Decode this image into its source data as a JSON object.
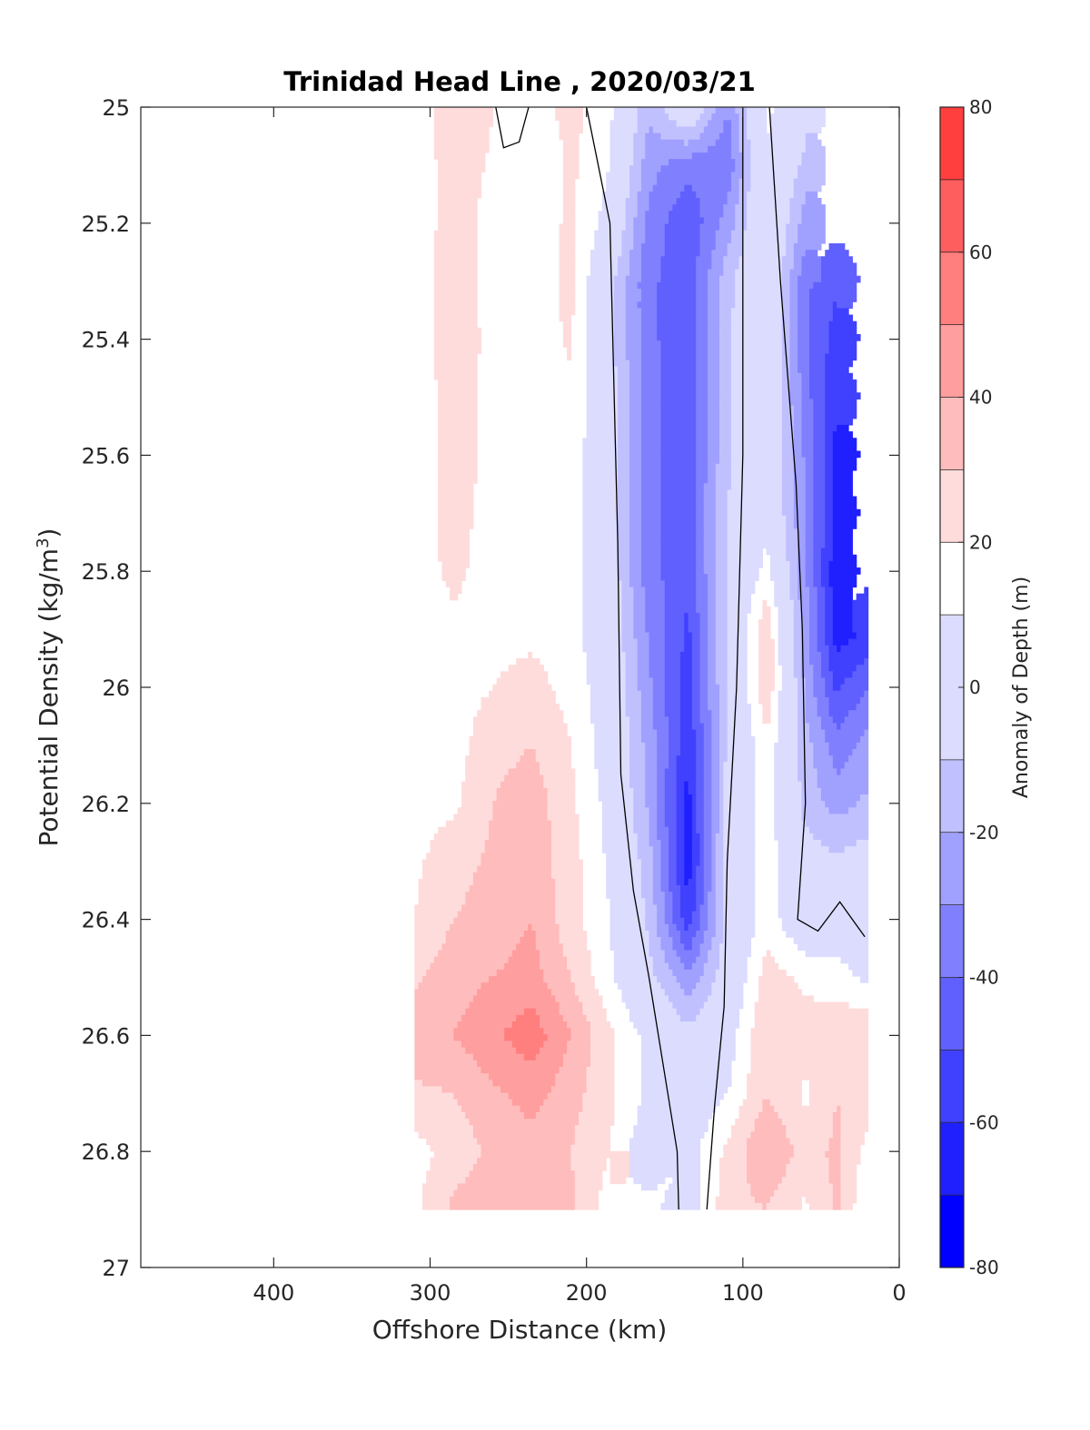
{
  "chart_data": {
    "type": "contour",
    "title": "Trinidad Head Line , 2020/03/21",
    "xlabel": "Offshore Distance (km)",
    "ylabel_main": "Potential Density (kg/m",
    "ylabel_sup": "3",
    "ylabel_end": ")",
    "xlim": [
      485,
      0
    ],
    "ylim": [
      25,
      27
    ],
    "x_reversed": true,
    "y_reversed": true,
    "x_ticks": [
      400,
      300,
      200,
      100,
      0
    ],
    "y_ticks": [
      "25",
      "25.2",
      "25.4",
      "25.6",
      "25.8",
      "26",
      "26.2",
      "26.4",
      "26.6",
      "26.8",
      "27"
    ],
    "colorbar": {
      "label": "Anomaly of Depth (m)",
      "range": [
        -80,
        80
      ],
      "tick_values": [
        -80,
        -60,
        -40,
        -20,
        0,
        20,
        40,
        60,
        80
      ],
      "tick_labels": [
        "-80",
        "-60",
        "-40",
        "-20",
        "0",
        "20",
        "40",
        "60",
        "80"
      ],
      "levels": [
        -80,
        -70,
        -60,
        -50,
        -40,
        -30,
        -20,
        -10,
        10,
        20,
        30,
        40,
        50,
        60,
        70,
        80
      ],
      "colors": [
        "#0000ff",
        "#2020ff",
        "#4040ff",
        "#6060ff",
        "#8080ff",
        "#a0a0ff",
        "#c0c0ff",
        "#dcdcff",
        "#ffffff",
        "#ffdcdc",
        "#ffbcbc",
        "#ff9e9e",
        "#ff7e7e",
        "#ff5e5e",
        "#ff3e3e",
        "#ff1e1e"
      ]
    },
    "data_extent": {
      "x": [
        310,
        20
      ],
      "y": [
        25,
        26.9
      ]
    },
    "stations_x": [
      310,
      285,
      260,
      235,
      210,
      185,
      160,
      135,
      110,
      85,
      60,
      40,
      20
    ],
    "density_rows": [
      25.0,
      25.1,
      25.2,
      25.3,
      25.4,
      25.5,
      25.6,
      25.7,
      25.8,
      25.9,
      26.0,
      26.1,
      26.2,
      26.3,
      26.4,
      26.5,
      26.6,
      26.7,
      26.8,
      26.9
    ],
    "anomaly_grid": [
      [
        14,
        26,
        20,
        14,
        24,
        12,
        -18,
        6,
        -30,
        12,
        4,
        null,
        null
      ],
      [
        15,
        24,
        19,
        10,
        22,
        10,
        -26,
        -36,
        -38,
        9,
        -14,
        null,
        null
      ],
      [
        15,
        24,
        17,
        14,
        22,
        5,
        -34,
        -48,
        -26,
        8,
        -25,
        null,
        null
      ],
      [
        16,
        24,
        17,
        16,
        22,
        -6,
        -38,
        -46,
        -14,
        8,
        -38,
        -48,
        null
      ],
      [
        16,
        24,
        18,
        16,
        21,
        -6,
        -38,
        -46,
        -12,
        8,
        -38,
        -55,
        null
      ],
      [
        16,
        23,
        18,
        16,
        19,
        -4,
        -38,
        -45,
        -12,
        9,
        -36,
        -58,
        null
      ],
      [
        16,
        23,
        18,
        16,
        17,
        -4,
        -38,
        -45,
        -12,
        8,
        -32,
        -64,
        null
      ],
      [
        16,
        23,
        17,
        16,
        15,
        -4,
        -38,
        -46,
        -10,
        6,
        -30,
        -64,
        null
      ],
      [
        16,
        22,
        16,
        15,
        14,
        -2,
        -36,
        -48,
        -8,
        14,
        -28,
        -68,
        null
      ],
      [
        16,
        18,
        17,
        17,
        14,
        0,
        -32,
        -52,
        -8,
        28,
        -26,
        -66,
        -60
      ],
      [
        16,
        16,
        20,
        24,
        16,
        3,
        -28,
        -56,
        -8,
        28,
        -22,
        -52,
        -40
      ],
      [
        16,
        16,
        26,
        30,
        20,
        3,
        -24,
        -58,
        -8,
        18,
        -16,
        -36,
        -26
      ],
      [
        16,
        18,
        30,
        36,
        22,
        6,
        -22,
        -64,
        -6,
        16,
        -14,
        -24,
        -18
      ],
      [
        18,
        26,
        32,
        36,
        24,
        8,
        -16,
        -66,
        -4,
        16,
        -4,
        -8,
        -4
      ],
      [
        20,
        30,
        34,
        40,
        24,
        10,
        -12,
        -56,
        -6,
        16,
        -2,
        2,
        0
      ],
      [
        28,
        36,
        40,
        44,
        30,
        12,
        -6,
        -28,
        -2,
        24,
        18,
        14,
        8
      ],
      [
        36,
        40,
        48,
        56,
        40,
        22,
        6,
        -6,
        4,
        30,
        24,
        28,
        30
      ],
      [
        28,
        30,
        38,
        44,
        34,
        22,
        8,
        0,
        10,
        30,
        18,
        30,
        26
      ],
      [
        16,
        24,
        32,
        36,
        30,
        20,
        0,
        6,
        22,
        40,
        26,
        32,
        16
      ],
      [
        18,
        32,
        40,
        38,
        32,
        14,
        null,
        4,
        26,
        30,
        18,
        32,
        10
      ]
    ],
    "contour_lines": [
      {
        "level": 0,
        "points": [
          [
            258,
            25.0
          ],
          [
            253,
            25.07
          ],
          [
            243,
            25.06
          ],
          [
            237,
            25.0
          ]
        ]
      },
      {
        "level": 0,
        "points": [
          [
            200,
            25.0
          ],
          [
            185,
            25.2
          ],
          [
            180,
            25.75
          ],
          [
            178,
            26.15
          ],
          [
            170,
            26.35
          ],
          [
            160,
            26.5
          ],
          [
            148,
            26.7
          ],
          [
            142,
            26.8
          ],
          [
            141,
            26.9
          ]
        ]
      },
      {
        "level": 0,
        "points": [
          [
            100,
            25.0
          ],
          [
            100,
            25.6
          ],
          [
            104,
            26.0
          ],
          [
            110,
            26.3
          ],
          [
            112,
            26.55
          ],
          [
            118,
            26.72
          ],
          [
            123,
            26.9
          ]
        ]
      },
      {
        "level": 0,
        "points": [
          [
            83,
            25.0
          ],
          [
            76,
            25.3
          ],
          [
            66,
            25.65
          ],
          [
            62,
            25.9
          ],
          [
            60,
            26.2
          ],
          [
            65,
            26.4
          ],
          [
            52,
            26.42
          ],
          [
            38,
            26.37
          ],
          [
            22,
            26.43
          ]
        ]
      }
    ]
  }
}
